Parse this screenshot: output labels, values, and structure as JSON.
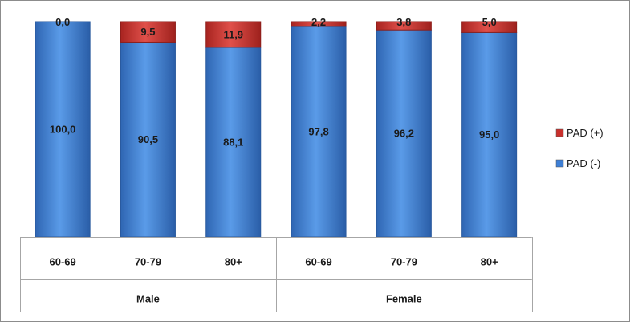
{
  "chart_data": {
    "type": "bar",
    "stacked": true,
    "percent": true,
    "groups": [
      {
        "label": "Male",
        "categories": [
          "60-69",
          "70-79",
          "80+"
        ]
      },
      {
        "label": "Female",
        "categories": [
          "60-69",
          "70-79",
          "80+"
        ]
      }
    ],
    "categories": [
      "60-69",
      "70-79",
      "80+",
      "60-69",
      "70-79",
      "80+"
    ],
    "series": [
      {
        "name": "PAD (-)",
        "color": "#3d7fd6",
        "values": [
          100.0,
          90.5,
          88.1,
          97.8,
          96.2,
          95.0
        ],
        "labels": [
          "100,0",
          "90,5",
          "88,1",
          "97,8",
          "96,2",
          "95,0"
        ]
      },
      {
        "name": "PAD (+)",
        "color": "#c9302c",
        "values": [
          0.0,
          9.5,
          11.9,
          2.2,
          3.8,
          5.0
        ],
        "labels": [
          "0,0",
          "9,5",
          "11,9",
          "2,2",
          "3,8",
          "5,0"
        ]
      }
    ],
    "legend": [
      "PAD (+)",
      "PAD (-)"
    ],
    "legend_position": "right",
    "ylim": [
      0,
      100
    ],
    "grid": false
  }
}
